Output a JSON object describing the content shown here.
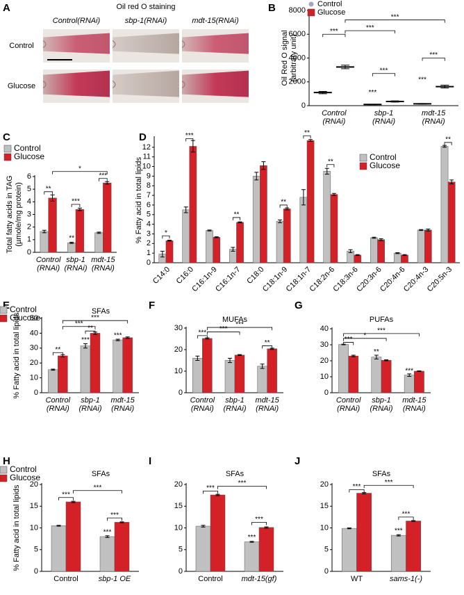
{
  "panel_a": {
    "label": "A",
    "title": "Oil red O staining",
    "columns": [
      "Control(RNAi)",
      "sbp-1(RNAi)",
      "mdt-15(RNAi)"
    ],
    "rows": [
      "Control",
      "Glucose"
    ]
  },
  "chart_data": [
    {
      "type": "dot",
      "label": "B",
      "ylabel": [
        "Oil Red O signal",
        "(arbitrary unit)"
      ],
      "legend": true,
      "categories": [
        [
          "Control",
          "(RNAi)"
        ],
        [
          "sbp-1",
          "(RNAi)"
        ],
        [
          "mdt-15",
          "(RNAi)"
        ]
      ],
      "series": [
        {
          "name": "Control",
          "color": "#a3a3bd",
          "values": [
            1100,
            100,
            150
          ],
          "errors": [
            100,
            20,
            30
          ]
        },
        {
          "name": "Glucose",
          "color": "#d42027",
          "values": [
            3250,
            350,
            1600
          ],
          "errors": [
            150,
            50,
            120
          ]
        }
      ],
      "ylim": [
        0,
        8000
      ],
      "yticks": [
        0,
        2000,
        4000,
        6000,
        8000
      ],
      "annotations": [
        "***",
        "***",
        "***",
        "***",
        "***",
        "***",
        "***"
      ]
    },
    {
      "type": "bar",
      "label": "C",
      "ylabel": [
        "Total fatty acids in TAG",
        "(µmole/mg protein)"
      ],
      "legend": true,
      "categories": [
        [
          "Control",
          "(RNAi)"
        ],
        [
          "sbp-1",
          "(RNAi)"
        ],
        [
          "mdt-15",
          "(RNAi)"
        ]
      ],
      "series": [
        {
          "name": "Control",
          "color": "#c0c0c0",
          "values": [
            1.65,
            0.75,
            1.55
          ],
          "errors": [
            0.1,
            0.05,
            0.05
          ]
        },
        {
          "name": "Glucose",
          "color": "#d42027",
          "values": [
            4.3,
            3.4,
            5.5
          ],
          "errors": [
            0.25,
            0.1,
            0.1
          ]
        }
      ],
      "ylim": [
        0,
        6
      ],
      "yticks": [
        0,
        1,
        2,
        3,
        4,
        5,
        6
      ],
      "annotations": [
        "**",
        "*",
        "***",
        "**",
        "***"
      ]
    },
    {
      "type": "bar",
      "label": "D",
      "ylabel": "% Fatty acid in total lipids",
      "legend": true,
      "categories": [
        "C14:0",
        "C16:0",
        "C16:1n-9",
        "C16:1n-7",
        "C18:0",
        "C18:1n-9",
        "C18:1n-7",
        "C18:2n-6",
        "C18:3n-6",
        "C20:3n-6",
        "C20:4n-6",
        "C20:4n-3",
        "C20:5n-3"
      ],
      "series": [
        {
          "name": "Control",
          "color": "#c0c0c0",
          "values": [
            0.9,
            5.5,
            3.35,
            1.4,
            9.0,
            4.3,
            6.8,
            9.5,
            1.2,
            2.6,
            1.0,
            3.4,
            12.1
          ],
          "errors": [
            0.3,
            0.3,
            0.05,
            0.2,
            0.4,
            0.15,
            0.8,
            0.3,
            0.15,
            0.05,
            0.05,
            0.05,
            0.1
          ]
        },
        {
          "name": "Glucose",
          "color": "#d42027",
          "values": [
            2.3,
            12.1,
            2.65,
            4.2,
            10.1,
            5.6,
            12.7,
            7.1,
            0.8,
            2.4,
            0.8,
            3.4,
            8.4
          ],
          "errors": [
            0.05,
            0.6,
            0.05,
            0.05,
            0.4,
            0.1,
            0.1,
            0.1,
            0.05,
            0.1,
            0.05,
            0.1,
            0.2
          ]
        }
      ],
      "ylim": [
        0,
        13
      ],
      "yticks": [
        0,
        1,
        2,
        3,
        4,
        5,
        6,
        7,
        8,
        9,
        10,
        11,
        12
      ],
      "annotations": [
        "*",
        "***",
        "**",
        "**",
        "**",
        "**",
        "**"
      ]
    },
    {
      "type": "bar",
      "label": "E",
      "title": "SFAs",
      "ylabel": "% Fatty acid in total lipids",
      "legend": true,
      "categories": [
        [
          "Control",
          "(RNAi)"
        ],
        [
          "sbp-1",
          "(RNAi)"
        ],
        [
          "mdt-15",
          "(RNAi)"
        ]
      ],
      "series": [
        {
          "name": "Control",
          "color": "#c0c0c0",
          "values": [
            15.5,
            31.5,
            35.5
          ],
          "errors": [
            0.4,
            1.5,
            0.5
          ]
        },
        {
          "name": "Glucose",
          "color": "#d42027",
          "values": [
            24.8,
            40,
            37
          ],
          "errors": [
            0.8,
            0.8,
            0.5
          ]
        }
      ],
      "ylim": [
        0,
        50
      ],
      "yticks": [
        0,
        10,
        20,
        30,
        40,
        50
      ],
      "annotations": [
        "**",
        "***",
        "**",
        "***",
        "***",
        "***"
      ]
    },
    {
      "type": "bar",
      "label": "F",
      "title": "MUFAs",
      "categories": [
        [
          "Control",
          "(RNAi)"
        ],
        [
          "sbp-1",
          "(RNAi)"
        ],
        [
          "mdt-15",
          "(RNAi)"
        ]
      ],
      "series": [
        {
          "name": "Control",
          "color": "#c0c0c0",
          "values": [
            16,
            15,
            12.3
          ],
          "errors": [
            1,
            1,
            1
          ]
        },
        {
          "name": "Glucose",
          "color": "#d42027",
          "values": [
            25.2,
            17.5,
            20.4
          ],
          "errors": [
            0.3,
            0.2,
            0.3
          ]
        }
      ],
      "ylim": [
        0,
        30
      ],
      "yticks": [
        0,
        10,
        20,
        30
      ],
      "annotations": [
        "***",
        "***",
        "***",
        "**"
      ]
    },
    {
      "type": "bar",
      "label": "G",
      "title": "PUFAs",
      "categories": [
        [
          "Control",
          "(RNAi)"
        ],
        [
          "sbp-1",
          "(RNAi)"
        ],
        [
          "mdt-15",
          "(RNAi)"
        ]
      ],
      "series": [
        {
          "name": "Control",
          "color": "#c0c0c0",
          "values": [
            30.2,
            22.3,
            11
          ],
          "errors": [
            0.2,
            1.2,
            0.8
          ]
        },
        {
          "name": "Glucose",
          "color": "#d42027",
          "values": [
            23,
            20.3,
            13.5
          ],
          "errors": [
            0.5,
            0.3,
            0.2
          ]
        }
      ],
      "ylim": [
        0,
        40
      ],
      "yticks": [
        0,
        10,
        20,
        30,
        40
      ],
      "annotations": [
        "***",
        "*",
        "***",
        "**",
        "***"
      ]
    },
    {
      "type": "bar",
      "label": "H",
      "title": "SFAs",
      "ylabel": "% Fatty acid in total lipids",
      "legend": true,
      "categories": [
        "Control",
        "sbp-1 OE"
      ],
      "series": [
        {
          "name": "Control",
          "color": "#c0c0c0",
          "values": [
            10.5,
            8
          ],
          "errors": [
            0.1,
            0.2
          ]
        },
        {
          "name": "Glucose",
          "color": "#d42027",
          "values": [
            16,
            11.3
          ],
          "errors": [
            0.15,
            0.1
          ]
        }
      ],
      "ylim": [
        0,
        20
      ],
      "yticks": [
        0,
        5,
        10,
        15,
        20
      ],
      "annotations": [
        "***",
        "***",
        "***",
        "***"
      ]
    },
    {
      "type": "bar",
      "label": "I",
      "title": "SFAs",
      "categories": [
        "Control",
        "mdt-15(gf)"
      ],
      "series": [
        {
          "name": "Control",
          "color": "#c0c0c0",
          "values": [
            10.4,
            6.8
          ],
          "errors": [
            0.2,
            0.1
          ]
        },
        {
          "name": "Glucose",
          "color": "#d42027",
          "values": [
            17.6,
            10.1
          ],
          "errors": [
            0.15,
            0.15
          ]
        }
      ],
      "ylim": [
        0,
        20
      ],
      "yticks": [
        0,
        5,
        10,
        15,
        20
      ],
      "annotations": [
        "***",
        "***",
        "***",
        "***"
      ]
    },
    {
      "type": "bar",
      "label": "J",
      "title": "SFAs",
      "categories": [
        "WT",
        "sams-1(-)"
      ],
      "series": [
        {
          "name": "Control",
          "color": "#c0c0c0",
          "values": [
            9.9,
            8.3
          ],
          "errors": [
            0.1,
            0.15
          ]
        },
        {
          "name": "Glucose",
          "color": "#d42027",
          "values": [
            18,
            11.6
          ],
          "errors": [
            0.15,
            0.1
          ]
        }
      ],
      "ylim": [
        0,
        20
      ],
      "yticks": [
        0,
        5,
        10,
        15,
        20
      ],
      "annotations": [
        "***",
        "***",
        "***",
        "***"
      ]
    }
  ]
}
